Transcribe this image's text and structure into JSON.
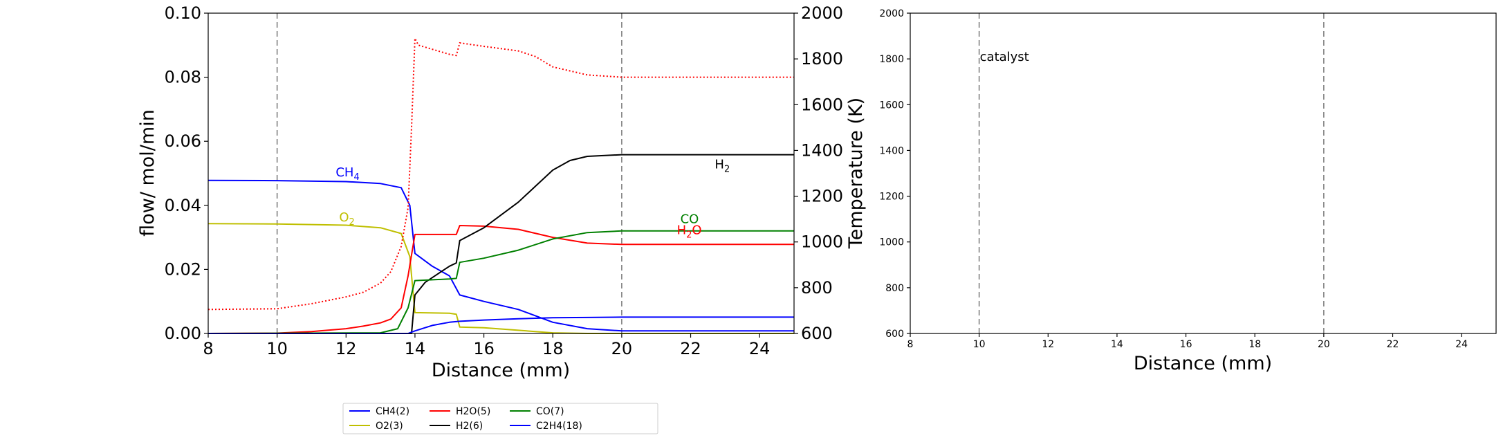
{
  "chart_data": [
    {
      "type": "line",
      "xlabel": "Distance (mm)",
      "ylabel": "flow/ mol/min",
      "y2label": "Temperature (K)",
      "xlim": [
        8,
        25
      ],
      "ylim": [
        0,
        0.1
      ],
      "y2lim": [
        600,
        2000
      ],
      "xticks": [
        "8",
        "10",
        "12",
        "14",
        "16",
        "18",
        "20",
        "22",
        "24"
      ],
      "yticks": [
        "0.00",
        "0.02",
        "0.04",
        "0.06",
        "0.08",
        "0.10"
      ],
      "y2ticks": [
        "600",
        "800",
        "1000",
        "1200",
        "1400",
        "1600",
        "1800",
        "2000"
      ],
      "vlines": [
        10,
        20
      ],
      "grid": false,
      "legend_position": "bottom-center",
      "series": [
        {
          "name": "CH4(2)",
          "color": "#0000ff",
          "x": [
            8,
            10,
            12,
            13,
            13.6,
            13.85,
            14.0,
            14.5,
            15.0,
            15.3,
            16.0,
            17.0,
            18.0,
            19.0,
            20.0,
            25.0
          ],
          "y": [
            0.0478,
            0.0477,
            0.0474,
            0.0468,
            0.0455,
            0.04,
            0.025,
            0.021,
            0.018,
            0.012,
            0.01,
            0.0075,
            0.0035,
            0.0015,
            0.0008,
            0.0008
          ]
        },
        {
          "name": "O2(3)",
          "color": "#bfbf00",
          "x": [
            8,
            10,
            12,
            13,
            13.6,
            13.85,
            14.0,
            15.0,
            15.2,
            15.3,
            16.0,
            17.0,
            18.0,
            19.0,
            25.0
          ],
          "y": [
            0.0343,
            0.0342,
            0.0338,
            0.033,
            0.0312,
            0.024,
            0.0065,
            0.0063,
            0.006,
            0.002,
            0.0018,
            0.001,
            0.0002,
            0.0,
            0.0
          ]
        },
        {
          "name": "H2O(5)",
          "color": "#ff0000",
          "x": [
            8,
            10,
            11,
            12,
            12.5,
            13.0,
            13.3,
            13.6,
            13.8,
            14.0,
            15.2,
            15.3,
            16.0,
            17.0,
            18.0,
            19.0,
            20.0,
            25.0
          ],
          "y": [
            0.0,
            0.0001,
            0.0006,
            0.0015,
            0.0023,
            0.0033,
            0.0045,
            0.008,
            0.018,
            0.0309,
            0.0309,
            0.0337,
            0.0335,
            0.0325,
            0.03,
            0.0282,
            0.0278,
            0.0278
          ]
        },
        {
          "name": "H2(6)",
          "color": "#000000",
          "x": [
            8,
            13.9,
            14.0,
            14.3,
            15.0,
            15.2,
            15.3,
            16.0,
            17.0,
            17.5,
            18.0,
            18.5,
            19.0,
            20.0,
            25.0
          ],
          "y": [
            0.0,
            0.0,
            0.012,
            0.016,
            0.021,
            0.022,
            0.029,
            0.033,
            0.041,
            0.046,
            0.051,
            0.054,
            0.0553,
            0.0558,
            0.0558
          ]
        },
        {
          "name": "CO(7)",
          "color": "#008000",
          "x": [
            8,
            13.0,
            13.5,
            13.8,
            14.0,
            15.0,
            15.2,
            15.3,
            16.0,
            17.0,
            18.0,
            19.0,
            20.0,
            25.0
          ],
          "y": [
            0.0,
            0.0002,
            0.0015,
            0.008,
            0.0165,
            0.017,
            0.0172,
            0.0222,
            0.0235,
            0.026,
            0.0295,
            0.0315,
            0.032,
            0.032
          ]
        },
        {
          "name": "C2H4(18)",
          "color": "#0000ff",
          "x": [
            8,
            13.8,
            14.0,
            14.5,
            15.0,
            15.3,
            16.0,
            17.0,
            18.0,
            19.0,
            20.0,
            25.0
          ],
          "y": [
            0.0,
            0.0,
            0.0008,
            0.0025,
            0.0035,
            0.0038,
            0.0042,
            0.0046,
            0.0049,
            0.005,
            0.0051,
            0.0051
          ]
        }
      ],
      "temperature": {
        "color": "#ff0000",
        "style": "dotted",
        "x": [
          8,
          10,
          11,
          12,
          12.5,
          13.0,
          13.3,
          13.6,
          13.8,
          13.9,
          14.0,
          14.1,
          15.0,
          15.2,
          15.3,
          16.0,
          17.0,
          17.5,
          18.0,
          19.0,
          20.0,
          25.0
        ],
        "y": [
          705,
          708,
          730,
          760,
          780,
          820,
          870,
          980,
          1150,
          1500,
          1890,
          1860,
          1820,
          1815,
          1870,
          1855,
          1835,
          1810,
          1765,
          1730,
          1720,
          1720
        ]
      },
      "annotations": [
        {
          "text": "CH",
          "sub": "4",
          "x": 11.7,
          "y": 0.049,
          "color": "#0000ff"
        },
        {
          "text": "O",
          "sub": "2",
          "x": 11.8,
          "y": 0.035,
          "color": "#bfbf00"
        },
        {
          "text": "H",
          "sub": "2",
          "x": 22.7,
          "y": 0.0515,
          "color": "#000000"
        },
        {
          "text": "CO",
          "sub": "",
          "x": 21.7,
          "y": 0.0345,
          "color": "#008000"
        },
        {
          "text": "H",
          "sub": "2",
          "tail": "O",
          "x": 21.6,
          "y": 0.031,
          "color": "#ff0000"
        }
      ]
    },
    {
      "type": "line",
      "xlabel": "Distance (mm)",
      "xlim": [
        8,
        25
      ],
      "ylim": [
        600,
        2000
      ],
      "xticks": [
        "8",
        "10",
        "12",
        "14",
        "16",
        "18",
        "20",
        "22",
        "24"
      ],
      "yticks": [
        "600",
        "800",
        "1000",
        "1200",
        "1400",
        "1600",
        "1800",
        "2000"
      ],
      "vlines": [
        10,
        20
      ],
      "grid": false,
      "annotations": [
        {
          "text": "catalyst",
          "x": 10.0,
          "y": 1810
        }
      ]
    }
  ]
}
